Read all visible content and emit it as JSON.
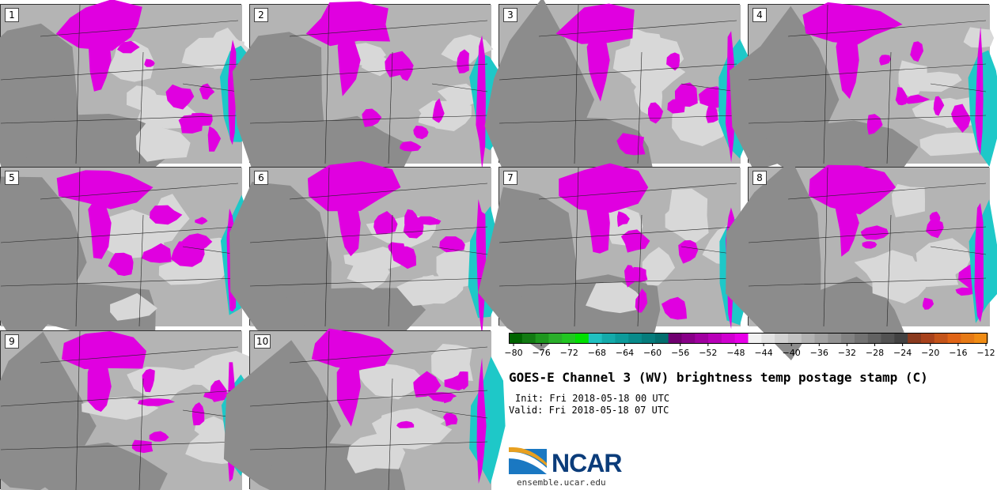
{
  "panels": [
    {
      "label": "1"
    },
    {
      "label": "2"
    },
    {
      "label": "3"
    },
    {
      "label": "4"
    },
    {
      "label": "5"
    },
    {
      "label": "6"
    },
    {
      "label": "7"
    },
    {
      "label": "8"
    },
    {
      "label": "9"
    },
    {
      "label": "10"
    }
  ],
  "colorbar": {
    "ticks": [
      "−80",
      "−76",
      "−72",
      "−68",
      "−64",
      "−60",
      "−56",
      "−52",
      "−48",
      "−44",
      "−40",
      "−36",
      "−32",
      "−28",
      "−24",
      "−20",
      "−16",
      "−12"
    ],
    "colors": [
      "#006400",
      "#127a12",
      "#1e961e",
      "#2aae2a",
      "#22c622",
      "#00e000",
      "#20c0c0",
      "#14aaaa",
      "#0c9a9a",
      "#088a8a",
      "#067c7c",
      "#046e6e",
      "#700070",
      "#880088",
      "#a000a0",
      "#b800b8",
      "#d000d0",
      "#e800e8",
      "#f2f2f2",
      "#e2e2e2",
      "#d2d2d2",
      "#c2c2c2",
      "#b2b2b2",
      "#a2a2a2",
      "#929292",
      "#828282",
      "#727272",
      "#626262",
      "#525252",
      "#424242",
      "#8a3a1e",
      "#a8421c",
      "#c4541a",
      "#e06416",
      "#e67a16",
      "#f08c14"
    ]
  },
  "title": "GOES-E Channel 3 (WV) brightness temp postage stamp (C)",
  "init": "Init: Fri 2018-05-18 00 UTC",
  "valid": "Valid: Fri 2018-05-18 07 UTC",
  "logo": {
    "text": "NCAR",
    "site": "ensemble.ucar.edu"
  },
  "colors": {
    "magenta": "#e000e0",
    "cyan": "#1ec8c8",
    "gray_dark": "#8c8c8c",
    "gray_mid": "#b4b4b4",
    "gray_light": "#d8d8d8"
  }
}
